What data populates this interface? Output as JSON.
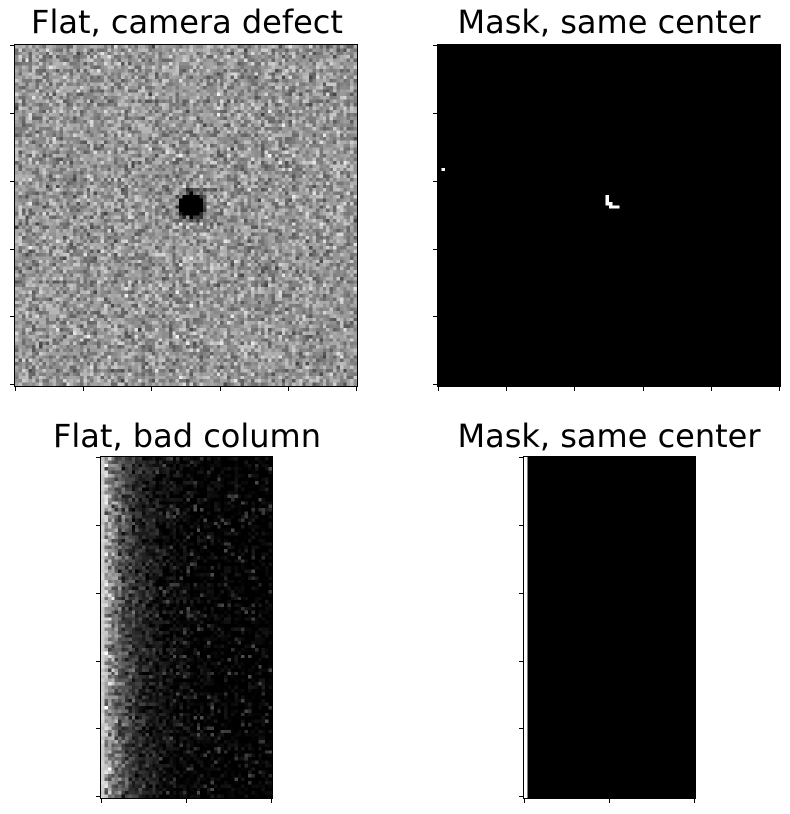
{
  "panels": [
    {
      "id": "flat-defect",
      "title": "Flat, camera defect",
      "kind": "flat-spot"
    },
    {
      "id": "mask-defect",
      "title": "Mask, same center",
      "kind": "mask-spot"
    },
    {
      "id": "flat-column",
      "title": "Flat, bad column",
      "kind": "flat-column"
    },
    {
      "id": "mask-column",
      "title": "Mask, same center",
      "kind": "mask-column"
    }
  ],
  "colormap": "grayscale"
}
